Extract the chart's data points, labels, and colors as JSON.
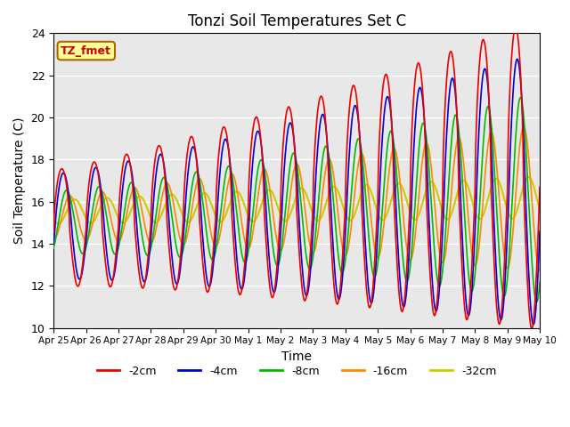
{
  "title": "Tonzi Soil Temperatures Set C",
  "xlabel": "Time",
  "ylabel": "Soil Temperature (C)",
  "xlim": [
    0,
    360
  ],
  "ylim": [
    10,
    24
  ],
  "yticks": [
    10,
    12,
    14,
    16,
    18,
    20,
    22,
    24
  ],
  "xtick_labels": [
    "Apr 25",
    "Apr 26",
    "Apr 27",
    "Apr 28",
    "Apr 29",
    "Apr 30",
    "May 1",
    "May 2",
    "May 3",
    "May 4",
    "May 5",
    "May 6",
    "May 7",
    "May 8",
    "May 9",
    "May 10"
  ],
  "colors": {
    "-2cm": "#ee0000",
    "-4cm": "#0000dd",
    "-8cm": "#00bb00",
    "-16cm": "#ff8800",
    "-32cm": "#cccc00"
  },
  "legend_label": "TZ_fmet",
  "background_color": "#e8e8e8"
}
